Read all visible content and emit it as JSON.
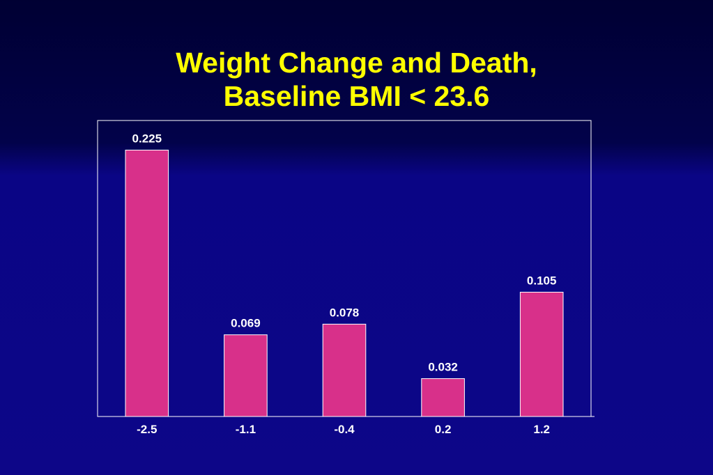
{
  "slide": {
    "title_line1": "Weight Change and Death,",
    "title_line2": "Baseline BMI < 23.6"
  },
  "colors": {
    "title": "#ffff00",
    "bar_fill": "#d8308a",
    "bar_stroke": "#ffffff",
    "axis": "#ffffff",
    "text": "#ffffff",
    "background_top": "#000033",
    "background_bottom": "#0d0688"
  },
  "chart_data": {
    "type": "bar",
    "categories": [
      "-2.5",
      "-1.1",
      "-0.4",
      "0.2",
      "1.2"
    ],
    "values": [
      0.225,
      0.069,
      0.078,
      0.032,
      0.105
    ],
    "data_labels": [
      "0.225",
      "0.069",
      "0.078",
      "0.032",
      "0.105"
    ],
    "title": "Weight Change and Death, Baseline BMI < 23.6",
    "xlabel": "",
    "ylabel": "",
    "ylim": [
      0,
      0.25
    ],
    "grid": false,
    "legend": "none"
  }
}
